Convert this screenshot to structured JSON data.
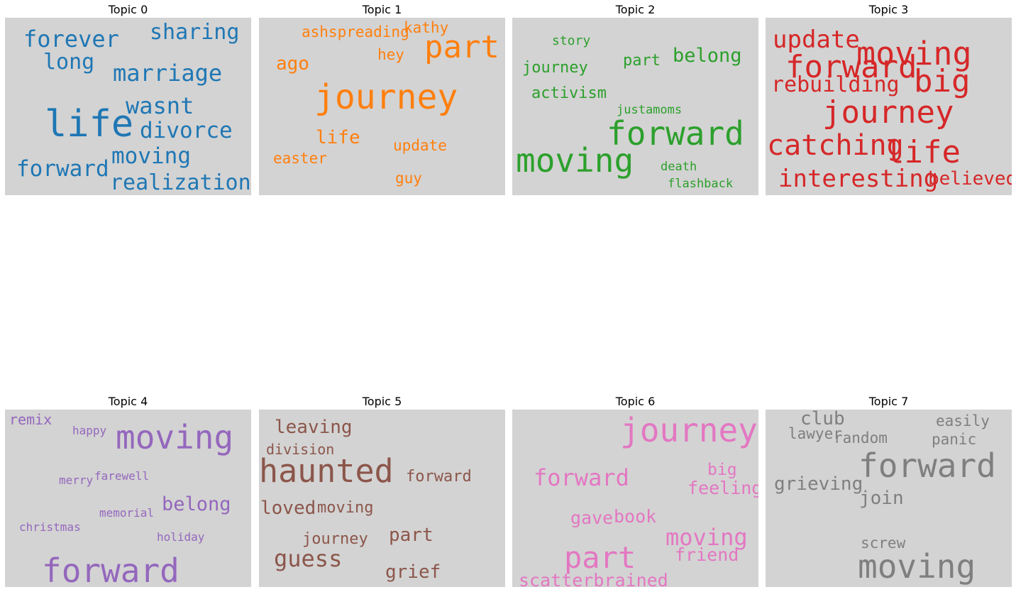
{
  "chart_data": {
    "type": "wordcloud",
    "panels": [
      {
        "title": "Topic 0",
        "color": "#1f77b4",
        "words": [
          {
            "text": "life",
            "weight": 1.0
          },
          {
            "text": "marriage",
            "weight": 0.7
          },
          {
            "text": "forever",
            "weight": 0.7
          },
          {
            "text": "wasnt",
            "weight": 0.7
          },
          {
            "text": "divorce",
            "weight": 0.68
          },
          {
            "text": "moving",
            "weight": 0.68
          },
          {
            "text": "forward",
            "weight": 0.68
          },
          {
            "text": "realization",
            "weight": 0.66
          },
          {
            "text": "sharing",
            "weight": 0.64
          },
          {
            "text": "long",
            "weight": 0.64
          }
        ]
      },
      {
        "title": "Topic 1",
        "color": "#ff7f0e",
        "words": [
          {
            "text": "journey",
            "weight": 1.0
          },
          {
            "text": "part",
            "weight": 0.9
          },
          {
            "text": "ago",
            "weight": 0.55
          },
          {
            "text": "life",
            "weight": 0.55
          },
          {
            "text": "ashspreading",
            "weight": 0.45
          },
          {
            "text": "kathy",
            "weight": 0.45
          },
          {
            "text": "hey",
            "weight": 0.45
          },
          {
            "text": "update",
            "weight": 0.45
          },
          {
            "text": "easter",
            "weight": 0.45
          },
          {
            "text": "guy",
            "weight": 0.45
          }
        ]
      },
      {
        "title": "Topic 2",
        "color": "#2ca02c",
        "words": [
          {
            "text": "moving",
            "weight": 1.0
          },
          {
            "text": "forward",
            "weight": 1.0
          },
          {
            "text": "belong",
            "weight": 0.6
          },
          {
            "text": "journey",
            "weight": 0.5
          },
          {
            "text": "part",
            "weight": 0.5
          },
          {
            "text": "activism",
            "weight": 0.5
          },
          {
            "text": "story",
            "weight": 0.4
          },
          {
            "text": "justamoms",
            "weight": 0.4
          },
          {
            "text": "death",
            "weight": 0.4
          },
          {
            "text": "flashback",
            "weight": 0.4
          }
        ]
      },
      {
        "title": "Topic 3",
        "color": "#d62728",
        "words": [
          {
            "text": "moving",
            "weight": 1.0
          },
          {
            "text": "forward",
            "weight": 1.0
          },
          {
            "text": "journey",
            "weight": 1.0
          },
          {
            "text": "life",
            "weight": 1.0
          },
          {
            "text": "big",
            "weight": 1.0
          },
          {
            "text": "catching",
            "weight": 0.9
          },
          {
            "text": "update",
            "weight": 0.8
          },
          {
            "text": "interesting",
            "weight": 0.8
          },
          {
            "text": "rebuilding",
            "weight": 0.7
          },
          {
            "text": "believed",
            "weight": 0.7
          }
        ]
      },
      {
        "title": "Topic 4",
        "color": "#9467bd",
        "words": [
          {
            "text": "forward",
            "weight": 1.0
          },
          {
            "text": "moving",
            "weight": 1.0
          },
          {
            "text": "belong",
            "weight": 0.6
          },
          {
            "text": "remix",
            "weight": 0.45
          },
          {
            "text": "happy",
            "weight": 0.4
          },
          {
            "text": "merry",
            "weight": 0.4
          },
          {
            "text": "farewell",
            "weight": 0.4
          },
          {
            "text": "memorial",
            "weight": 0.4
          },
          {
            "text": "christmas",
            "weight": 0.4
          },
          {
            "text": "holiday",
            "weight": 0.4
          }
        ]
      },
      {
        "title": "Topic 5",
        "color": "#8c564b",
        "words": [
          {
            "text": "haunted",
            "weight": 1.0
          },
          {
            "text": "guess",
            "weight": 0.7
          },
          {
            "text": "leaving",
            "weight": 0.6
          },
          {
            "text": "loved",
            "weight": 0.6
          },
          {
            "text": "part",
            "weight": 0.6
          },
          {
            "text": "grief",
            "weight": 0.6
          },
          {
            "text": "forward",
            "weight": 0.5
          },
          {
            "text": "moving",
            "weight": 0.5
          },
          {
            "text": "division",
            "weight": 0.5
          },
          {
            "text": "journey",
            "weight": 0.5
          }
        ]
      },
      {
        "title": "Topic 6",
        "color": "#e377c2",
        "words": [
          {
            "text": "journey",
            "weight": 1.0
          },
          {
            "text": "part",
            "weight": 0.9
          },
          {
            "text": "forward",
            "weight": 0.7
          },
          {
            "text": "moving",
            "weight": 0.7
          },
          {
            "text": "feeling",
            "weight": 0.55
          },
          {
            "text": "big",
            "weight": 0.55
          },
          {
            "text": "book",
            "weight": 0.55
          },
          {
            "text": "gave",
            "weight": 0.55
          },
          {
            "text": "friend",
            "weight": 0.55
          },
          {
            "text": "scatterbrained",
            "weight": 0.55
          }
        ]
      },
      {
        "title": "Topic 7",
        "color": "#7f7f7f",
        "words": [
          {
            "text": "forward",
            "weight": 1.0
          },
          {
            "text": "moving",
            "weight": 1.0
          },
          {
            "text": "grieving",
            "weight": 0.55
          },
          {
            "text": "club",
            "weight": 0.55
          },
          {
            "text": "join",
            "weight": 0.55
          },
          {
            "text": "easily",
            "weight": 0.45
          },
          {
            "text": "panic",
            "weight": 0.45
          },
          {
            "text": "lawyer",
            "weight": 0.45
          },
          {
            "text": "random",
            "weight": 0.45
          },
          {
            "text": "screw",
            "weight": 0.45
          }
        ]
      }
    ]
  }
}
